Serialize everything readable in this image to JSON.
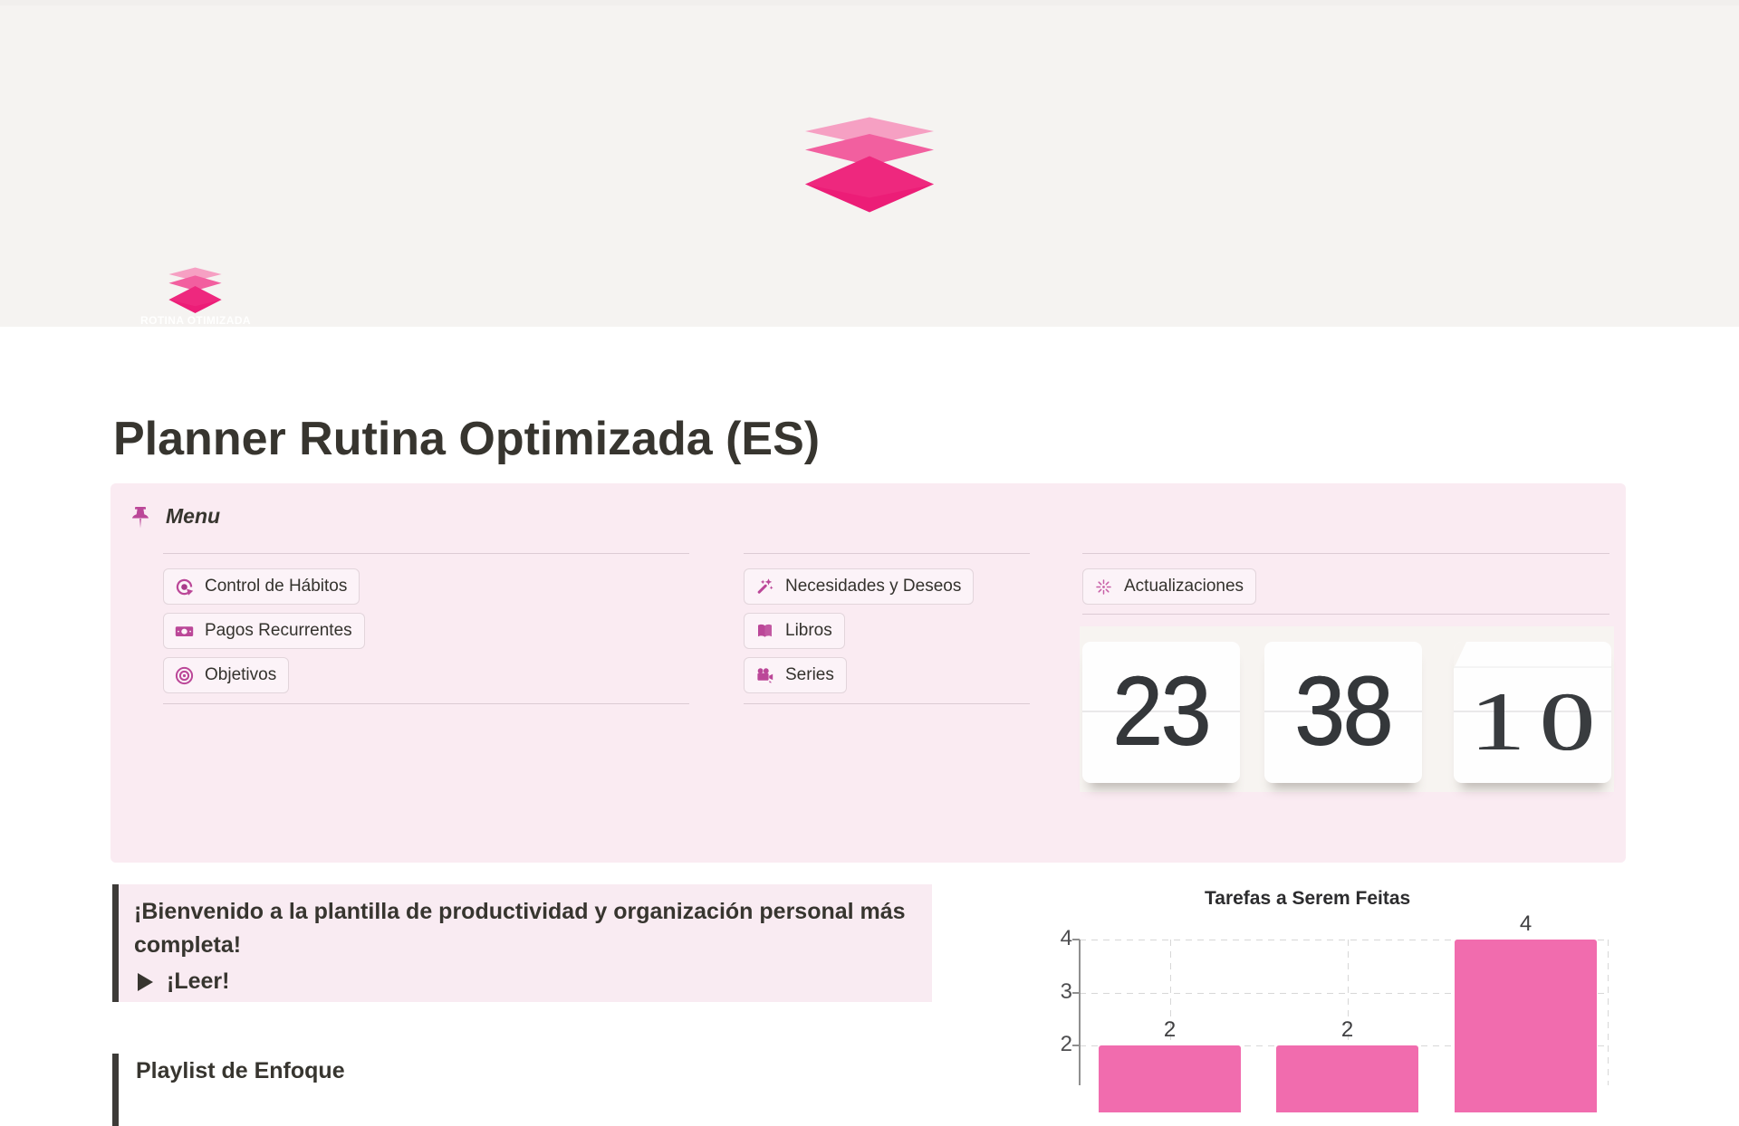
{
  "page": {
    "title": "Planner Rutina Optimizada (ES)"
  },
  "cover": {
    "description": "off-white banner with stacked pink layers logo",
    "background": "#f5f3f1",
    "logo_colors": [
      "#f7a5c6",
      "#f2609e",
      "#eb1c76"
    ]
  },
  "icon": {
    "caption": "ROTINA OTIMIZADA"
  },
  "menu": {
    "header": "Menu",
    "columns": [
      {
        "buttons": [
          {
            "label": "Control de Hábitos",
            "icon": "habit-loop-icon"
          },
          {
            "label": "Pagos Recurrentes",
            "icon": "banknote-icon"
          },
          {
            "label": "Objetivos",
            "icon": "target-icon"
          }
        ]
      },
      {
        "buttons": [
          {
            "label": "Necesidades y Deseos",
            "icon": "magic-wand-icon"
          },
          {
            "label": "Libros",
            "icon": "open-book-icon"
          },
          {
            "label": "Series",
            "icon": "movie-camera-icon"
          }
        ]
      },
      {
        "buttons": [
          {
            "label": "Actualizaciones",
            "icon": "sparkle-burst-icon"
          }
        ]
      }
    ],
    "clock": {
      "hours": "23",
      "minutes": "38",
      "seconds": "10"
    },
    "accent_color": "#bb4798",
    "panel_background": "#faebf2"
  },
  "quote": {
    "text": "¡Bienvenido a la plantilla de productividad y organización personal más completa!",
    "toggle_label": "¡Leer!"
  },
  "playlist": {
    "heading": "Playlist de Enfoque"
  },
  "chart_data": {
    "type": "bar",
    "title": "Tarefas a Serem Feitas",
    "categories": [
      "",
      "",
      ""
    ],
    "values": [
      2,
      2,
      4
    ],
    "data_labels": [
      "2",
      "2",
      "4"
    ],
    "yticks": [
      "4",
      "3",
      "2"
    ],
    "ytick_values": [
      4,
      3,
      2
    ],
    "ylim": [
      0,
      4
    ],
    "grid": "dashed",
    "bar_color": "#f16cae",
    "legend": "none"
  }
}
